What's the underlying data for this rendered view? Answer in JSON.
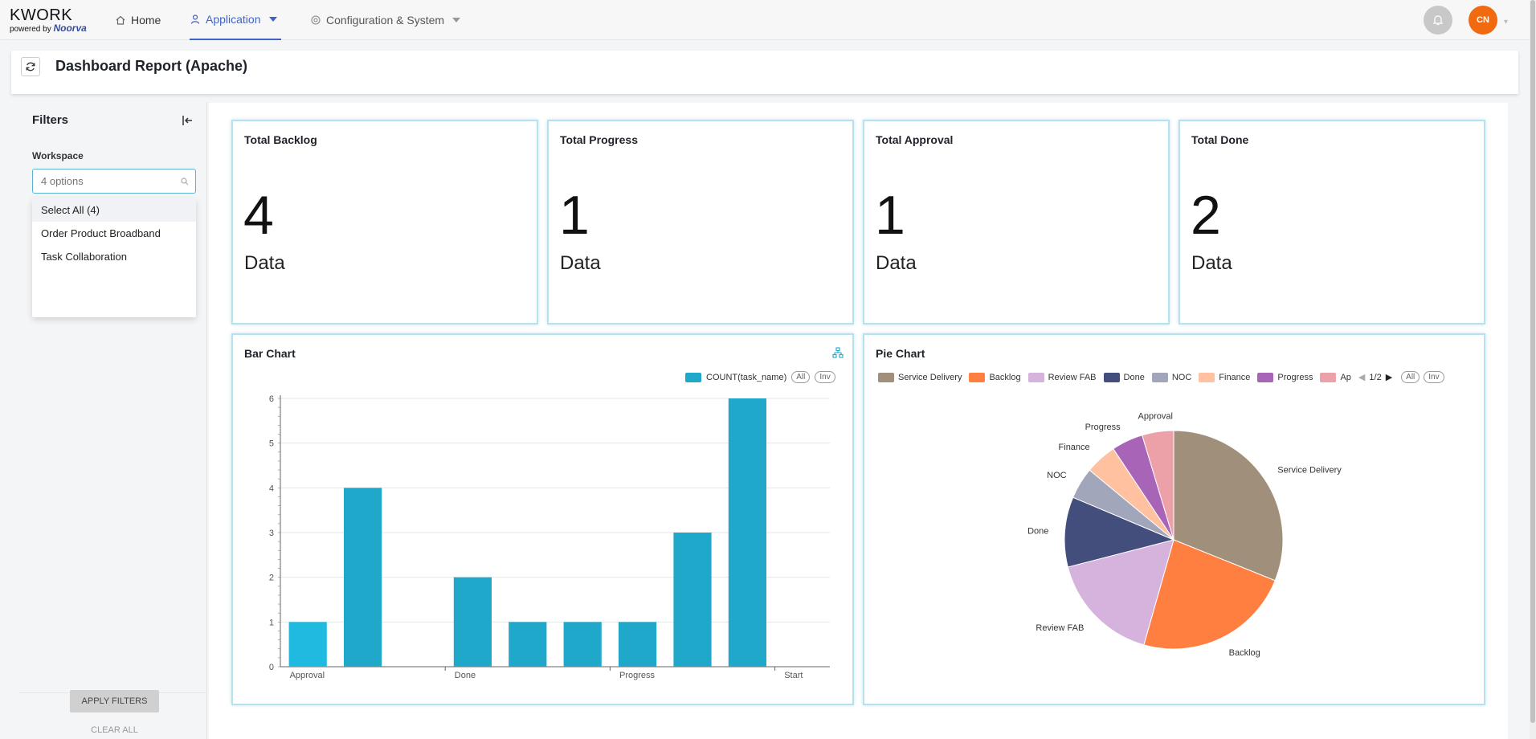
{
  "app": {
    "brand": "KWORK",
    "powered_by": "powered by",
    "powered_brand": "Noorva"
  },
  "nav": {
    "home": "Home",
    "application": "Application",
    "config": "Configuration & System"
  },
  "user": {
    "initials": "CN"
  },
  "page": {
    "title": "Dashboard Report (Apache)"
  },
  "filters": {
    "title": "Filters",
    "workspace_label": "Workspace",
    "workspace_placeholder": "4 options",
    "options": [
      "Select All (4)",
      "Order Product Broadband",
      "Task Collaboration"
    ],
    "apply_label": "APPLY FILTERS",
    "clear_label": "CLEAR ALL"
  },
  "kpis": [
    {
      "title": "Total Backlog",
      "value": "4",
      "unit": "Data"
    },
    {
      "title": "Total Progress",
      "value": "1",
      "unit": "Data"
    },
    {
      "title": "Total Approval",
      "value": "1",
      "unit": "Data"
    },
    {
      "title": "Total Done",
      "value": "2",
      "unit": "Data"
    }
  ],
  "colors": {
    "accent": "#3f63c8",
    "bar": "#1fa8c9",
    "avatar": "#f26a10",
    "card_border": "#b6e2ee"
  },
  "bar_chart_title": "Bar Chart",
  "pie_chart_title": "Pie Chart",
  "chart_data": [
    {
      "type": "bar",
      "title": "Bar Chart",
      "legend": "COUNT(task_name)",
      "legend_buttons": [
        "All",
        "Inv"
      ],
      "x_tick_labels": [
        "Approval",
        "Done",
        "Progress",
        "Start"
      ],
      "values": [
        1,
        4,
        0,
        2,
        1,
        1,
        1,
        3,
        6,
        0
      ],
      "ylim": [
        0,
        6
      ],
      "yticks": [
        0,
        1,
        2,
        3,
        4,
        5,
        6
      ],
      "grid": true,
      "legend_position": "top-right"
    },
    {
      "type": "pie",
      "title": "Pie Chart",
      "legend_page": "1/2",
      "legend_buttons": [
        "All",
        "Inv"
      ],
      "legend_visible": [
        "Service Delivery",
        "Backlog",
        "Review FAB",
        "Done",
        "NOC",
        "Finance",
        "Progress",
        "Ap"
      ],
      "slices": [
        {
          "label": "Service Delivery",
          "value": 6,
          "color": "#a0907b"
        },
        {
          "label": "Backlog",
          "value": 4.5,
          "color": "#fe7f3f"
        },
        {
          "label": "Review FAB",
          "value": 3.2,
          "color": "#d5b3dc"
        },
        {
          "label": "Done",
          "value": 2,
          "color": "#444e7d"
        },
        {
          "label": "NOC",
          "value": 0.9,
          "color": "#a2a6ba"
        },
        {
          "label": "Finance",
          "value": 0.9,
          "color": "#ffc19f"
        },
        {
          "label": "Progress",
          "value": 0.9,
          "color": "#a865b8"
        },
        {
          "label": "Approval",
          "value": 0.9,
          "color": "#eca0a8"
        }
      ]
    }
  ]
}
